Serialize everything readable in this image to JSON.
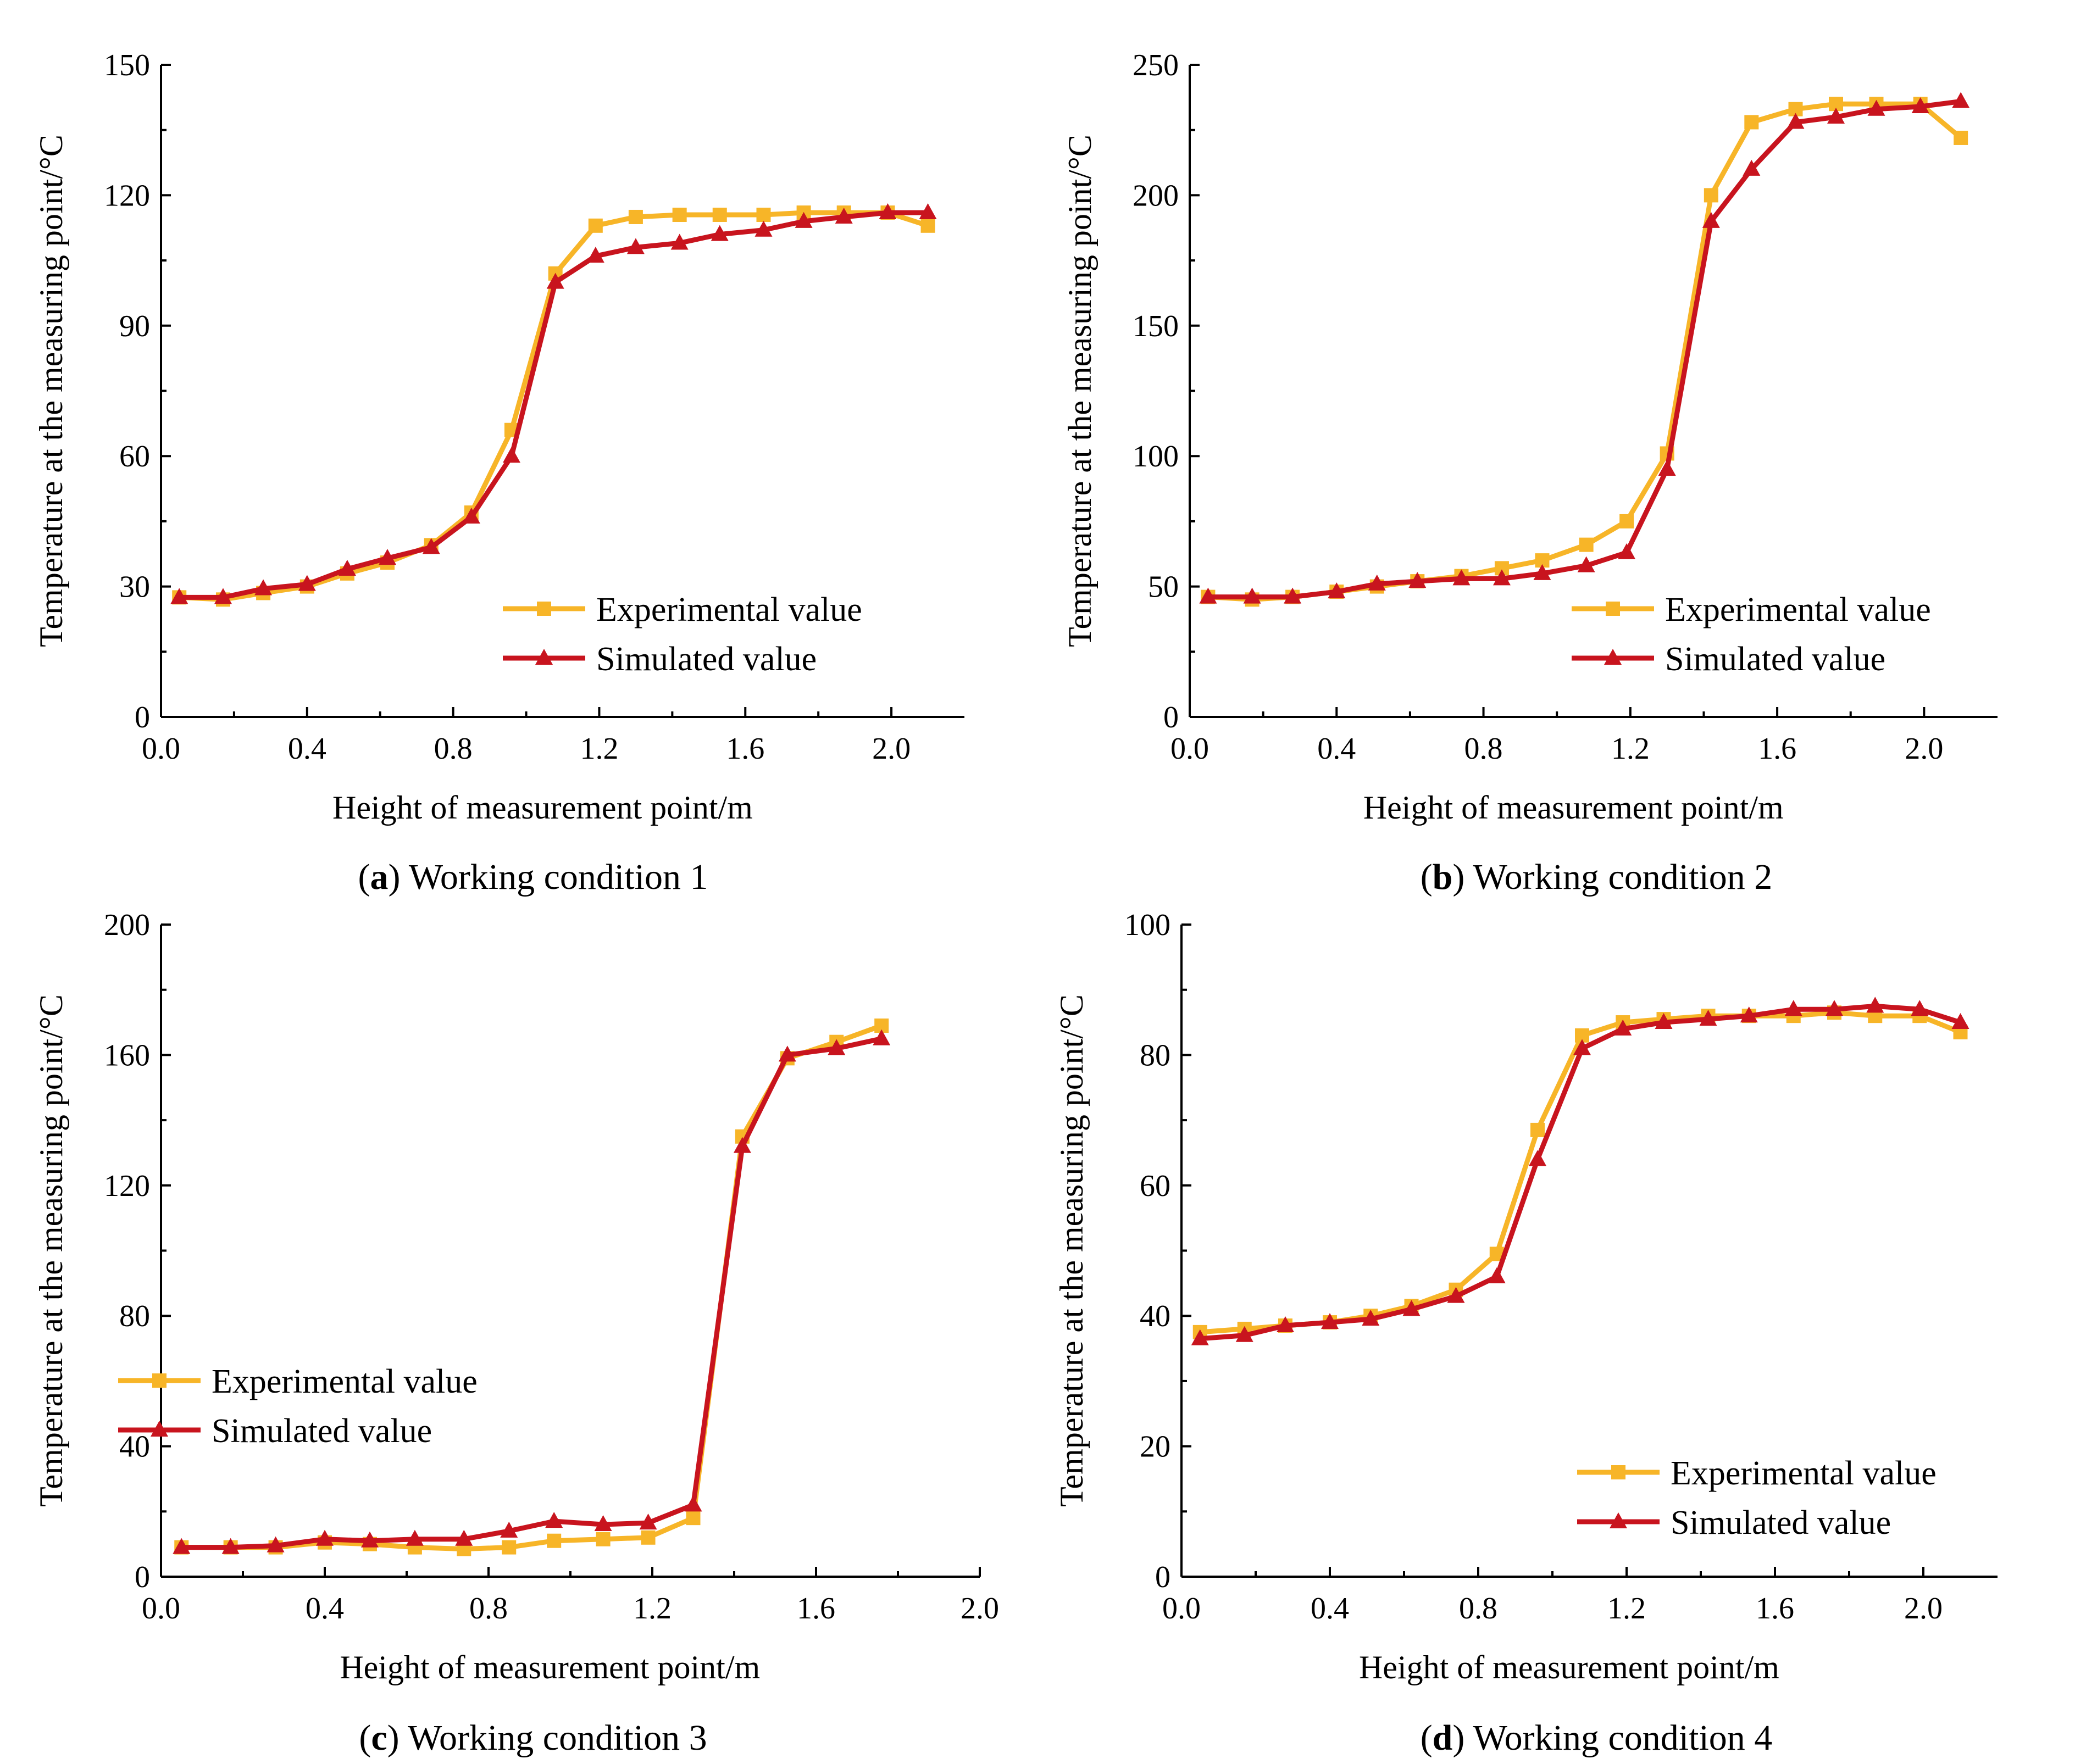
{
  "colors": {
    "experimental": "#F7B528",
    "simulated": "#C8141E"
  },
  "chart_data": [
    {
      "type": "line",
      "caption": {
        "letter": "a",
        "text": ") Working condition 1"
      },
      "xlabel": "Height of measurement point/m",
      "ylabel": "Temperature at the measuring point/°C",
      "xlim": [
        0,
        2.2
      ],
      "ylim": [
        0,
        150
      ],
      "xticks": [
        0,
        0.4,
        0.8,
        1.2,
        1.6,
        2.0
      ],
      "xtick_labels": [
        "0.0",
        "0.4",
        "0.8",
        "1.2",
        "1.6",
        "2.0"
      ],
      "yticks": [
        0,
        30,
        60,
        90,
        120,
        150
      ],
      "ytick_labels": [
        "0",
        "30",
        "60",
        "90",
        "120",
        "150"
      ],
      "legend_position": "bottom-right",
      "x": [
        0.05,
        0.17,
        0.28,
        0.4,
        0.51,
        0.62,
        0.74,
        0.85,
        0.96,
        1.08,
        1.19,
        1.3,
        1.42,
        1.53,
        1.65,
        1.76,
        1.87,
        1.99,
        2.1
      ],
      "series": [
        {
          "name": "Experimental value",
          "marker": "square",
          "values": [
            27.5,
            27,
            28.5,
            30,
            33,
            35.5,
            39.5,
            47,
            66,
            102,
            113,
            115,
            115.5,
            115.5,
            115.5,
            116,
            116,
            116,
            113
          ]
        },
        {
          "name": "Simulated value",
          "marker": "triangle",
          "values": [
            27.5,
            27.5,
            29.5,
            30.5,
            34,
            36.5,
            39,
            46,
            60,
            100,
            106,
            108,
            109,
            111,
            112,
            114,
            115,
            116,
            116
          ]
        }
      ]
    },
    {
      "type": "line",
      "caption": {
        "letter": "b",
        "text": ") Working condition 2"
      },
      "xlabel": "Height of measurement point/m",
      "ylabel": "Temperature at the measuring point/°C",
      "xlim": [
        0,
        2.2
      ],
      "ylim": [
        0,
        250
      ],
      "xticks": [
        0,
        0.4,
        0.8,
        1.2,
        1.6,
        2.0
      ],
      "xtick_labels": [
        "0.0",
        "0.4",
        "0.8",
        "1.2",
        "1.6",
        "2.0"
      ],
      "yticks": [
        0,
        50,
        100,
        150,
        200,
        250
      ],
      "ytick_labels": [
        "0",
        "50",
        "100",
        "150",
        "200",
        "250"
      ],
      "legend_position": "bottom-right",
      "x": [
        0.05,
        0.17,
        0.28,
        0.4,
        0.51,
        0.62,
        0.74,
        0.85,
        0.96,
        1.08,
        1.19,
        1.3,
        1.42,
        1.53,
        1.65,
        1.76,
        1.87,
        1.99,
        2.1
      ],
      "series": [
        {
          "name": "Experimental value",
          "marker": "square",
          "values": [
            46,
            45,
            46,
            48,
            50,
            52,
            54,
            57,
            60,
            66,
            75,
            101,
            200,
            228,
            233,
            235,
            235,
            235,
            222
          ]
        },
        {
          "name": "Simulated value",
          "marker": "triangle",
          "values": [
            46,
            46,
            46,
            48,
            51,
            52,
            53,
            53,
            55,
            58,
            63,
            95,
            190,
            210,
            228,
            230,
            233,
            234,
            236
          ]
        }
      ]
    },
    {
      "type": "line",
      "caption": {
        "letter": "c",
        "text": ") Working condition 3"
      },
      "xlabel": "Height of measurement point/m",
      "ylabel": "Temperature at the measuring point/°C",
      "xlim": [
        0,
        2.0
      ],
      "ylim": [
        0,
        200
      ],
      "xticks": [
        0,
        0.4,
        0.8,
        1.2,
        1.6,
        2.0
      ],
      "xtick_labels": [
        "0.0",
        "0.4",
        "0.8",
        "1.2",
        "1.6",
        "2.0"
      ],
      "yticks": [
        0,
        40,
        80,
        120,
        160,
        200
      ],
      "ytick_labels": [
        "0",
        "40",
        "80",
        "120",
        "160",
        "200"
      ],
      "legend_position": "center-left",
      "x": [
        0.05,
        0.17,
        0.28,
        0.4,
        0.51,
        0.62,
        0.74,
        0.85,
        0.96,
        1.08,
        1.19,
        1.3,
        1.42,
        1.53,
        1.65,
        1.76
      ],
      "series": [
        {
          "name": "Experimental value",
          "marker": "square",
          "values": [
            9,
            9,
            9,
            10.5,
            10,
            9,
            8.5,
            9,
            11,
            11.5,
            12,
            18,
            135,
            159,
            164,
            169
          ]
        },
        {
          "name": "Simulated value",
          "marker": "triangle",
          "values": [
            9,
            9,
            9.5,
            11.5,
            11,
            11.5,
            11.5,
            14,
            17,
            16,
            16.5,
            22,
            132,
            160,
            162,
            165
          ]
        }
      ]
    },
    {
      "type": "line",
      "caption": {
        "letter": "d",
        "text": ") Working condition 4"
      },
      "xlabel": "Height of measurement point/m",
      "ylabel": "Temperature at the measuring point/°C",
      "xlim": [
        0,
        2.2
      ],
      "ylim": [
        0,
        100
      ],
      "xticks": [
        0,
        0.4,
        0.8,
        1.2,
        1.6,
        2.0
      ],
      "xtick_labels": [
        "0.0",
        "0.4",
        "0.8",
        "1.2",
        "1.6",
        "2.0"
      ],
      "yticks": [
        0,
        20,
        40,
        60,
        80,
        100
      ],
      "ytick_labels": [
        "0",
        "20",
        "40",
        "60",
        "80",
        "100"
      ],
      "legend_position": "bottom-right",
      "x": [
        0.05,
        0.17,
        0.28,
        0.4,
        0.51,
        0.62,
        0.74,
        0.85,
        0.96,
        1.08,
        1.19,
        1.3,
        1.42,
        1.53,
        1.65,
        1.76,
        1.87,
        1.99,
        2.1
      ],
      "series": [
        {
          "name": "Experimental value",
          "marker": "square",
          "values": [
            37.5,
            38,
            38.5,
            39,
            40,
            41.5,
            44,
            49.5,
            68.5,
            83,
            85,
            85.5,
            86,
            86,
            86,
            86.5,
            86,
            86,
            83.5
          ]
        },
        {
          "name": "Simulated value",
          "marker": "triangle",
          "values": [
            36.5,
            37,
            38.5,
            39,
            39.5,
            41,
            43,
            46,
            64,
            81,
            84,
            85,
            85.5,
            86,
            87,
            87,
            87.5,
            87,
            85
          ]
        }
      ]
    }
  ]
}
